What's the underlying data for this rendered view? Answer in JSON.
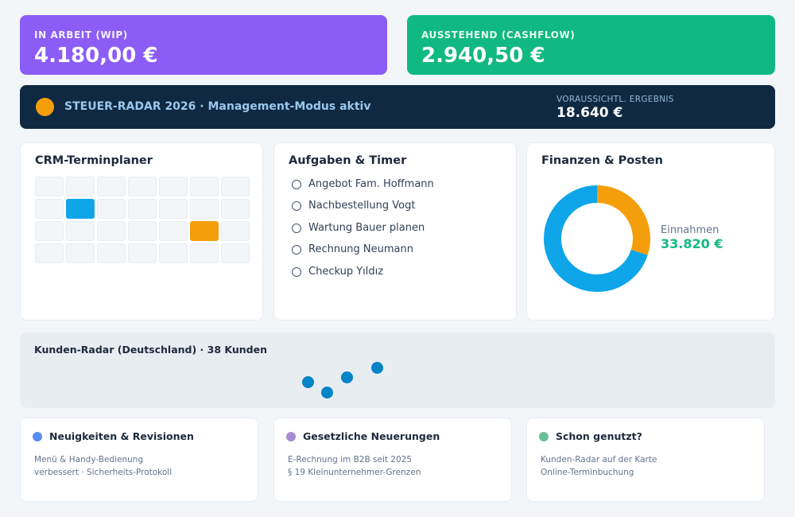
{
  "kpis": {
    "wip": {
      "label": "IN ARBEIT (WIP)",
      "value": "4.180,00 €",
      "color": "#8b5cf6"
    },
    "cashflow": {
      "label": "AUSSTEHEND (CASHFLOW)",
      "value": "2.940,50 €",
      "color": "#10b981"
    }
  },
  "banner": {
    "title": "STEUER-RADAR 2026 · Management-Modus aktiv",
    "result_label": "VORAUSSICHTL. ERGEBNIS",
    "result_value": "18.640 €",
    "status_color": "#f59e0b"
  },
  "crm": {
    "title": "CRM-Terminplaner",
    "calendar": {
      "rows": 4,
      "cols": 7,
      "highlights": [
        {
          "row": 1,
          "col": 1,
          "color": "blue"
        },
        {
          "row": 2,
          "col": 5,
          "color": "orange"
        }
      ]
    }
  },
  "tasks": {
    "title": "Aufgaben & Timer",
    "items": [
      {
        "label": "Angebot Fam. Hoffmann",
        "done": false
      },
      {
        "label": "Nachbestellung Vogt",
        "done": false
      },
      {
        "label": "Wartung Bauer planen",
        "done": false
      },
      {
        "label": "Rechnung Neumann",
        "done": false
      },
      {
        "label": "Checkup Yıldız",
        "done": false
      }
    ]
  },
  "finance": {
    "title": "Finanzen & Posten",
    "income_label": "Einnahmen",
    "income_value": "33.820 €",
    "donut": {
      "segments": [
        {
          "fraction": 0.3,
          "color": "#f59e0b"
        },
        {
          "fraction": 0.7,
          "color": "#0ea5e9"
        }
      ]
    }
  },
  "radar": {
    "title": "Kunden-Radar (Deutschland) · 38 Kunden",
    "pin_color": "#0284c7"
  },
  "info_cards": {
    "news": {
      "title": "Neuigkeiten & Revisionen",
      "line1": "Menü & Handy-Bedienung",
      "line2": "verbessert · Sicherheits-Protokoll",
      "color": "#5b8def"
    },
    "law": {
      "title": "Gesetzliche Neuerungen",
      "line1": "E-Rechnung im B2B seit 2025",
      "line2": "§ 19 Kleinunternehmer-Grenzen",
      "color": "#a78bd4"
    },
    "used": {
      "title": "Schon genutzt?",
      "line1": "Kunden-Radar auf der Karte",
      "line2": "Online-Terminbuchung",
      "color": "#6bbf9a"
    }
  }
}
